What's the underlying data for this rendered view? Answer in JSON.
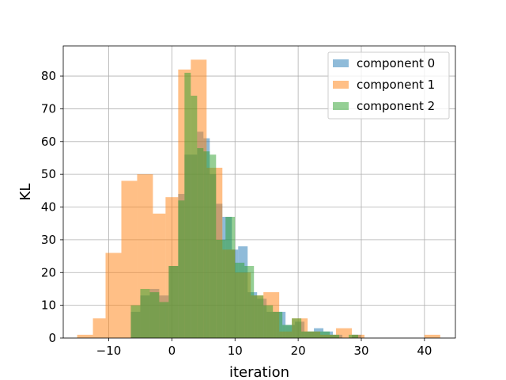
{
  "chart_data": {
    "type": "histogram",
    "xlabel": "iteration",
    "ylabel": "KL",
    "xlim": [
      -17.2,
      44.9
    ],
    "ylim": [
      0,
      89.2
    ],
    "xticks": [
      -10,
      0,
      10,
      20,
      30,
      40
    ],
    "yticks": [
      0,
      10,
      20,
      30,
      40,
      50,
      60,
      70,
      80
    ],
    "grid": true,
    "legend": {
      "position": "top-right"
    },
    "series": [
      {
        "name": "component 0",
        "color": "#1f77b4",
        "alpha": 0.5,
        "bins": [
          [
            -6.5,
            -5.0,
            8
          ],
          [
            -5.0,
            -3.5,
            13
          ],
          [
            -3.5,
            -2.0,
            15
          ],
          [
            -2.0,
            -0.5,
            13
          ],
          [
            -0.5,
            1.0,
            22
          ],
          [
            1.0,
            2.0,
            44
          ],
          [
            2.0,
            3.0,
            56
          ],
          [
            3.0,
            4.0,
            56
          ],
          [
            4.0,
            5.0,
            63
          ],
          [
            5.0,
            6.0,
            61
          ],
          [
            6.0,
            7.0,
            50
          ],
          [
            7.0,
            8.0,
            41
          ],
          [
            8.0,
            9.5,
            37
          ],
          [
            9.5,
            10.5,
            27
          ],
          [
            10.5,
            12.0,
            28
          ],
          [
            12.0,
            13.5,
            14
          ],
          [
            13.5,
            15.0,
            12
          ],
          [
            15.0,
            16.5,
            8
          ],
          [
            16.5,
            18.0,
            8
          ],
          [
            18.0,
            19.5,
            4
          ],
          [
            19.5,
            21.0,
            5
          ],
          [
            21.0,
            22.5,
            2
          ],
          [
            22.5,
            24.0,
            3
          ],
          [
            24.0,
            25.5,
            2
          ],
          [
            25.5,
            27.0,
            1
          ],
          [
            28.5,
            30.0,
            1
          ]
        ]
      },
      {
        "name": "component 1",
        "color": "#ff7f0e",
        "alpha": 0.5,
        "bins": [
          [
            -15.0,
            -12.5,
            1
          ],
          [
            -12.5,
            -10.5,
            6
          ],
          [
            -10.5,
            -8.0,
            26
          ],
          [
            -8.0,
            -5.5,
            48
          ],
          [
            -5.5,
            -3.0,
            50
          ],
          [
            -3.0,
            -1.0,
            38
          ],
          [
            -1.0,
            1.0,
            43
          ],
          [
            1.0,
            3.0,
            82
          ],
          [
            3.0,
            5.5,
            85
          ],
          [
            5.5,
            8.0,
            52
          ],
          [
            8.0,
            10.0,
            27
          ],
          [
            10.0,
            12.5,
            20
          ],
          [
            12.5,
            14.5,
            13
          ],
          [
            14.5,
            17.0,
            14
          ],
          [
            17.0,
            19.0,
            2
          ],
          [
            19.0,
            21.5,
            6
          ],
          [
            21.5,
            23.5,
            2
          ],
          [
            23.5,
            26.0,
            1
          ],
          [
            26.0,
            28.5,
            3
          ],
          [
            28.5,
            30.5,
            1
          ],
          [
            40.0,
            42.5,
            1
          ]
        ]
      },
      {
        "name": "component 2",
        "color": "#2ca02c",
        "alpha": 0.5,
        "bins": [
          [
            -6.5,
            -5.0,
            10
          ],
          [
            -5.0,
            -3.5,
            15
          ],
          [
            -3.5,
            -2.0,
            14
          ],
          [
            -2.0,
            -0.5,
            11
          ],
          [
            -0.5,
            1.0,
            22
          ],
          [
            1.0,
            2.0,
            42
          ],
          [
            2.0,
            3.0,
            81
          ],
          [
            3.0,
            4.0,
            74
          ],
          [
            4.0,
            5.0,
            58
          ],
          [
            5.0,
            6.0,
            57
          ],
          [
            6.0,
            7.0,
            56
          ],
          [
            7.0,
            8.5,
            30
          ],
          [
            8.5,
            10.0,
            37
          ],
          [
            10.0,
            11.5,
            23
          ],
          [
            11.5,
            13.0,
            22
          ],
          [
            13.0,
            14.5,
            13
          ],
          [
            14.5,
            16.0,
            10
          ],
          [
            16.0,
            17.5,
            8
          ],
          [
            17.5,
            19.0,
            4
          ],
          [
            19.0,
            20.5,
            6
          ],
          [
            20.5,
            22.0,
            2
          ],
          [
            22.0,
            23.5,
            2
          ],
          [
            23.5,
            25.0,
            2
          ],
          [
            25.0,
            26.5,
            1
          ],
          [
            28.0,
            29.5,
            1
          ]
        ]
      }
    ]
  }
}
